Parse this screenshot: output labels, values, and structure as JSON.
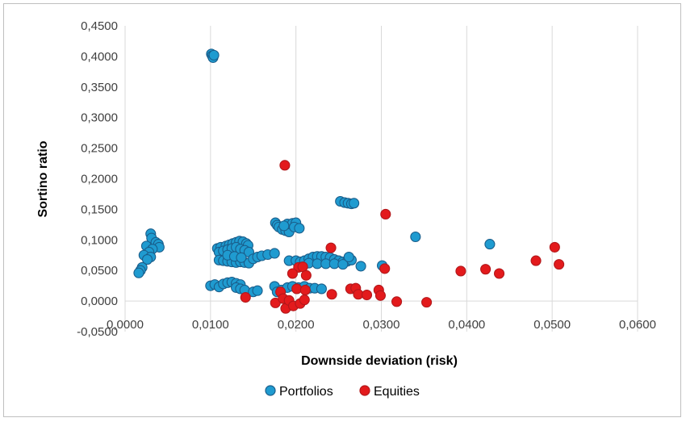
{
  "chart_data": {
    "type": "scatter",
    "title": "",
    "xlabel": "Downside deviation (risk)",
    "ylabel": "Sortino ratio",
    "xlim": [
      0,
      0.06
    ],
    "ylim": [
      -0.05,
      0.45
    ],
    "x_ticks": [
      "0,0000",
      "0,0100",
      "0,0200",
      "0,0300",
      "0,0400",
      "0,0500",
      "0,0600"
    ],
    "y_ticks": [
      "-0,0500",
      "0,0000",
      "0,0500",
      "0,1000",
      "0,1500",
      "0,2000",
      "0,2500",
      "0,3000",
      "0,3500",
      "0,4000",
      "0,4500"
    ],
    "grid": "vertical",
    "legend": "bottom",
    "series": [
      {
        "name": "Portfolios",
        "color": "#1f9bd0",
        "stroke": "#1a5d8a",
        "points": [
          [
            0.0101,
            0.404
          ],
          [
            0.0102,
            0.401
          ],
          [
            0.0103,
            0.398
          ],
          [
            0.0104,
            0.402
          ],
          [
            0.003,
            0.11
          ],
          [
            0.0031,
            0.103
          ],
          [
            0.0036,
            0.096
          ],
          [
            0.0039,
            0.093
          ],
          [
            0.004,
            0.088
          ],
          [
            0.0025,
            0.09
          ],
          [
            0.0032,
            0.085
          ],
          [
            0.0028,
            0.08
          ],
          [
            0.0022,
            0.075
          ],
          [
            0.003,
            0.072
          ],
          [
            0.0026,
            0.068
          ],
          [
            0.002,
            0.055
          ],
          [
            0.0018,
            0.05
          ],
          [
            0.0016,
            0.046
          ],
          [
            0.0108,
            0.086
          ],
          [
            0.0112,
            0.088
          ],
          [
            0.0118,
            0.09
          ],
          [
            0.0122,
            0.092
          ],
          [
            0.0126,
            0.094
          ],
          [
            0.013,
            0.096
          ],
          [
            0.0134,
            0.098
          ],
          [
            0.0138,
            0.097
          ],
          [
            0.0142,
            0.094
          ],
          [
            0.0144,
            0.091
          ],
          [
            0.011,
            0.08
          ],
          [
            0.0115,
            0.082
          ],
          [
            0.012,
            0.084
          ],
          [
            0.0125,
            0.086
          ],
          [
            0.013,
            0.088
          ],
          [
            0.0135,
            0.085
          ],
          [
            0.014,
            0.083
          ],
          [
            0.0145,
            0.08
          ],
          [
            0.011,
            0.067
          ],
          [
            0.0115,
            0.066
          ],
          [
            0.012,
            0.065
          ],
          [
            0.0125,
            0.064
          ],
          [
            0.013,
            0.063
          ],
          [
            0.0135,
            0.064
          ],
          [
            0.014,
            0.063
          ],
          [
            0.0145,
            0.062
          ],
          [
            0.015,
            0.069
          ],
          [
            0.0155,
            0.072
          ],
          [
            0.016,
            0.074
          ],
          [
            0.0167,
            0.076
          ],
          [
            0.0175,
            0.078
          ],
          [
            0.012,
            0.075
          ],
          [
            0.0128,
            0.073
          ],
          [
            0.0136,
            0.071
          ],
          [
            0.01,
            0.025
          ],
          [
            0.0105,
            0.027
          ],
          [
            0.011,
            0.023
          ],
          [
            0.0115,
            0.028
          ],
          [
            0.012,
            0.03
          ],
          [
            0.0125,
            0.031
          ],
          [
            0.013,
            0.029
          ],
          [
            0.0135,
            0.027
          ],
          [
            0.013,
            0.022
          ],
          [
            0.0135,
            0.02
          ],
          [
            0.014,
            0.018
          ],
          [
            0.015,
            0.015
          ],
          [
            0.0155,
            0.017
          ],
          [
            0.0176,
            0.128
          ],
          [
            0.0178,
            0.124
          ],
          [
            0.018,
            0.121
          ],
          [
            0.0184,
            0.117
          ],
          [
            0.0188,
            0.115
          ],
          [
            0.0192,
            0.113
          ],
          [
            0.019,
            0.126
          ],
          [
            0.0196,
            0.127
          ],
          [
            0.02,
            0.128
          ],
          [
            0.0198,
            0.121
          ],
          [
            0.0204,
            0.119
          ],
          [
            0.0186,
            0.123
          ],
          [
            0.0192,
            0.066
          ],
          [
            0.02,
            0.066
          ],
          [
            0.0205,
            0.064
          ],
          [
            0.021,
            0.066
          ],
          [
            0.0215,
            0.069
          ],
          [
            0.022,
            0.072
          ],
          [
            0.0225,
            0.073
          ],
          [
            0.023,
            0.073
          ],
          [
            0.0235,
            0.072
          ],
          [
            0.024,
            0.071
          ],
          [
            0.0245,
            0.068
          ],
          [
            0.025,
            0.066
          ],
          [
            0.0255,
            0.064
          ],
          [
            0.026,
            0.065
          ],
          [
            0.0265,
            0.067
          ],
          [
            0.0215,
            0.062
          ],
          [
            0.0225,
            0.061
          ],
          [
            0.0235,
            0.061
          ],
          [
            0.0245,
            0.061
          ],
          [
            0.0255,
            0.06
          ],
          [
            0.0262,
            0.072
          ],
          [
            0.0276,
            0.057
          ],
          [
            0.0301,
            0.058
          ],
          [
            0.0175,
            0.024
          ],
          [
            0.0178,
            0.015
          ],
          [
            0.0183,
            0.018
          ],
          [
            0.019,
            0.022
          ],
          [
            0.0196,
            0.024
          ],
          [
            0.0203,
            0.022
          ],
          [
            0.021,
            0.024
          ],
          [
            0.0216,
            0.021
          ],
          [
            0.0222,
            0.021
          ],
          [
            0.023,
            0.02
          ],
          [
            0.0252,
            0.163
          ],
          [
            0.0257,
            0.161
          ],
          [
            0.0261,
            0.16
          ],
          [
            0.0265,
            0.159
          ],
          [
            0.0268,
            0.16
          ],
          [
            0.034,
            0.105
          ],
          [
            0.0427,
            0.093
          ]
        ]
      },
      {
        "name": "Equities",
        "color": "#e31a1c",
        "stroke": "#b2181b",
        "points": [
          [
            0.0187,
            0.222
          ],
          [
            0.0305,
            0.142
          ],
          [
            0.0241,
            0.087
          ],
          [
            0.0203,
            0.055
          ],
          [
            0.0208,
            0.056
          ],
          [
            0.0196,
            0.045
          ],
          [
            0.0212,
            0.042
          ],
          [
            0.0304,
            0.053
          ],
          [
            0.0393,
            0.049
          ],
          [
            0.0422,
            0.052
          ],
          [
            0.0438,
            0.045
          ],
          [
            0.0481,
            0.066
          ],
          [
            0.0503,
            0.088
          ],
          [
            0.0508,
            0.06
          ],
          [
            0.0141,
            0.006
          ],
          [
            0.0176,
            -0.003
          ],
          [
            0.0182,
            0.015
          ],
          [
            0.0185,
            0.004
          ],
          [
            0.0188,
            -0.012
          ],
          [
            0.0192,
            0.001
          ],
          [
            0.0197,
            -0.008
          ],
          [
            0.0201,
            0.02
          ],
          [
            0.0205,
            -0.004
          ],
          [
            0.021,
            0.002
          ],
          [
            0.0211,
            0.018
          ],
          [
            0.0242,
            0.011
          ],
          [
            0.0264,
            0.02
          ],
          [
            0.027,
            0.021
          ],
          [
            0.0273,
            0.011
          ],
          [
            0.0283,
            0.01
          ],
          [
            0.0297,
            0.018
          ],
          [
            0.0299,
            0.009
          ],
          [
            0.0318,
            -0.001
          ],
          [
            0.0353,
            -0.002
          ]
        ]
      }
    ]
  }
}
